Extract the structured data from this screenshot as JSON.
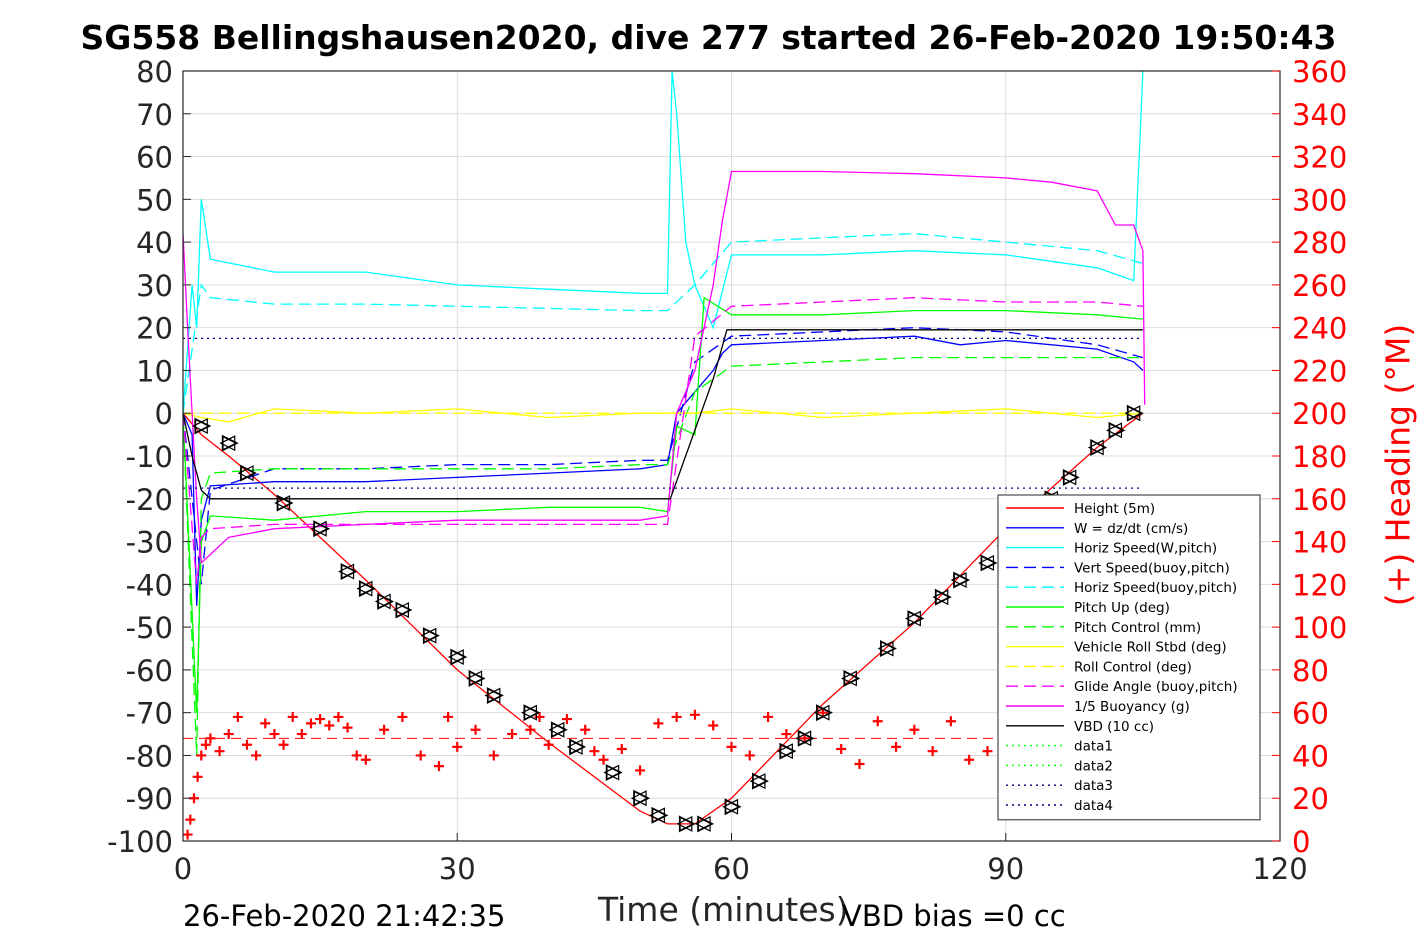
{
  "title": "SG558 Bellingshausen2020, dive 277 started 26-Feb-2020 19:50:43",
  "footer": {
    "date": "26-Feb-2020 21:42:35",
    "vbd_bias": "VBD bias =0 cc"
  },
  "colors": {
    "height": "#ff0000",
    "w": "#0000ff",
    "horiz": "#00ffff",
    "pitch": "#00ff00",
    "roll": "#ffff00",
    "glide": "#ff00ff",
    "vbd": "#000000",
    "grid": "#dcdcdc"
  },
  "chart_data": {
    "type": "line",
    "xlabel": "Time (minutes)",
    "ylabel": "",
    "y2label": "(+) Heading (°M)",
    "xlim": [
      0,
      120
    ],
    "ylim": [
      -100,
      80
    ],
    "y2lim": [
      0,
      360
    ],
    "xticks": [
      0,
      30,
      60,
      90,
      120
    ],
    "yticks": [
      80,
      70,
      60,
      50,
      40,
      30,
      20,
      10,
      0,
      -10,
      -20,
      -30,
      -40,
      -50,
      -60,
      -70,
      -80,
      -90,
      -100
    ],
    "y2ticks": [
      360,
      340,
      320,
      300,
      280,
      260,
      240,
      220,
      200,
      180,
      160,
      140,
      120,
      100,
      80,
      60,
      40,
      20,
      0
    ],
    "grid": true,
    "legend_position": "bottom-right",
    "series": [
      {
        "name": "Height (5m)",
        "color": "#ff0000",
        "style": "solid",
        "x": [
          0,
          2,
          5,
          10,
          20,
          30,
          40,
          50,
          53,
          56,
          60,
          70,
          80,
          90,
          100,
          105
        ],
        "y": [
          0,
          -5,
          -10,
          -19,
          -39,
          -60,
          -77,
          -93,
          -96,
          -96,
          -90,
          -68,
          -49,
          -27,
          -8,
          0
        ]
      },
      {
        "name": "W = dz/dt (cm/s)",
        "color": "#0000ff",
        "style": "solid",
        "x": [
          0,
          1,
          1.5,
          2,
          3,
          10,
          20,
          30,
          40,
          50,
          53,
          54,
          56,
          58,
          59,
          60,
          70,
          80,
          85,
          90,
          100,
          104,
          105
        ],
        "y": [
          0,
          -5,
          -45,
          -25,
          -17,
          -16,
          -16,
          -15,
          -14,
          -13,
          -12,
          0,
          5,
          10,
          14,
          16,
          17,
          18,
          16,
          17,
          15,
          12,
          10
        ]
      },
      {
        "name": "Horiz Speed(W,pitch)",
        "color": "#00ffff",
        "style": "solid",
        "x": [
          0,
          1,
          1.5,
          2,
          3,
          10,
          20,
          30,
          40,
          50,
          53,
          53.5,
          54,
          55,
          56,
          58,
          60,
          70,
          80,
          90,
          100,
          104,
          105
        ],
        "y": [
          0,
          30,
          20,
          50,
          36,
          33,
          33,
          30,
          29,
          28,
          28,
          80,
          70,
          40,
          30,
          20,
          37,
          37,
          38,
          37,
          34,
          31,
          80
        ]
      },
      {
        "name": "Vert Speed(buoy,pitch)",
        "color": "#0000ff",
        "style": "dash",
        "x": [
          0,
          2,
          3,
          10,
          20,
          30,
          40,
          50,
          53,
          56,
          60,
          70,
          80,
          90,
          100,
          105
        ],
        "y": [
          0,
          -40,
          -18,
          -13,
          -13,
          -12,
          -12,
          -11,
          -11,
          12,
          18,
          19,
          20,
          19,
          16,
          13
        ]
      },
      {
        "name": "Horiz Speed(buoy,pitch)",
        "color": "#00ffff",
        "style": "dash",
        "x": [
          0,
          2,
          3,
          10,
          20,
          30,
          40,
          50,
          53,
          56,
          60,
          70,
          80,
          90,
          100,
          105
        ],
        "y": [
          0,
          30,
          27,
          25.5,
          25.5,
          25,
          24.5,
          24,
          24,
          30,
          40,
          41,
          42,
          40,
          38,
          35
        ]
      },
      {
        "name": "Pitch Up (deg)",
        "color": "#00ff00",
        "style": "solid",
        "x": [
          0,
          1.5,
          2,
          3,
          10,
          20,
          30,
          40,
          50,
          53,
          54,
          56,
          57,
          60,
          70,
          80,
          90,
          100,
          105
        ],
        "y": [
          0,
          -70,
          -30,
          -24,
          -25,
          -23,
          -23,
          -22,
          -22,
          -23,
          -3,
          -5,
          27,
          23,
          23,
          24,
          24,
          23,
          22
        ]
      },
      {
        "name": "Pitch Control (mm)",
        "color": "#00ff00",
        "style": "dash",
        "x": [
          0,
          1.5,
          2,
          3,
          10,
          20,
          30,
          40,
          50,
          53,
          56,
          60,
          70,
          80,
          90,
          100,
          105
        ],
        "y": [
          0,
          -80,
          -20,
          -14,
          -13,
          -13,
          -13,
          -13,
          -12,
          -12,
          5,
          11,
          12,
          13,
          13,
          13,
          13
        ]
      },
      {
        "name": "Vehicle Roll Stbd (deg)",
        "color": "#ffff00",
        "style": "solid",
        "x": [
          0,
          2,
          5,
          10,
          20,
          30,
          40,
          50,
          53,
          56,
          60,
          70,
          80,
          90,
          100,
          105
        ],
        "y": [
          0,
          -1,
          -2,
          1,
          0,
          1,
          -1,
          0,
          0,
          0,
          1,
          -1,
          0,
          1,
          -1,
          0
        ]
      },
      {
        "name": "Roll Control (deg)",
        "color": "#ffff00",
        "style": "dash",
        "x": [
          0,
          2,
          5,
          10,
          20,
          30,
          40,
          50,
          53,
          56,
          60,
          70,
          80,
          90,
          100,
          105
        ],
        "y": [
          0,
          0,
          0,
          0,
          0,
          0,
          0,
          0,
          0,
          0,
          0,
          0,
          0,
          0,
          0,
          0
        ]
      },
      {
        "name": "Glide Angle (buoy,pitch)",
        "color": "#ff00ff",
        "style": "dash",
        "x": [
          0,
          1.5,
          2,
          3,
          10,
          20,
          30,
          40,
          50,
          53,
          56,
          60,
          70,
          80,
          90,
          100,
          105
        ],
        "y": [
          0,
          -40,
          -29,
          -27,
          -26,
          -26,
          -26,
          -26,
          -26,
          -26,
          18,
          25,
          26,
          27,
          26,
          26,
          25
        ]
      },
      {
        "name": "1/5 Buoyancy (g)",
        "color": "#ff00ff",
        "style": "solid",
        "x": [
          0,
          0.5,
          1,
          1.5,
          2,
          3,
          5,
          10,
          20,
          30,
          40,
          50,
          53,
          54,
          56,
          58,
          59,
          60,
          70,
          80,
          90,
          95,
          100,
          101,
          102,
          104,
          105,
          105.2
        ],
        "y": [
          42,
          20,
          0,
          -20,
          -35,
          -33,
          -29,
          -27,
          -26,
          -25,
          -25,
          -25,
          -24,
          0,
          10,
          30,
          45,
          56.5,
          56.5,
          56,
          55,
          54,
          52,
          48,
          44,
          44,
          38,
          2
        ]
      },
      {
        "name": "VBD (10 cc)",
        "color": "#000000",
        "style": "solid",
        "x": [
          0,
          1,
          2,
          3,
          53,
          53.3,
          58,
          59.5,
          105
        ],
        "y": [
          0,
          -10,
          -18,
          -20,
          -20,
          -20,
          8,
          19.5,
          19.5
        ]
      },
      {
        "name": "data1",
        "color": "#00ff00",
        "style": "dot",
        "x": [],
        "y": []
      },
      {
        "name": "data2",
        "color": "#00ff00",
        "style": "dot",
        "x": [],
        "y": []
      },
      {
        "name": "data3",
        "color": "#000080",
        "style": "dot",
        "x": [
          0,
          105
        ],
        "y": [
          17.5,
          17.5
        ]
      },
      {
        "name": "data4",
        "color": "#000080",
        "style": "dot",
        "x": [
          0,
          105
        ],
        "y": [
          -17.5,
          -17.5
        ]
      }
    ],
    "heading": {
      "axis": "right",
      "color": "#ff0000",
      "marker": "+",
      "x": [
        0.5,
        0.8,
        1.2,
        1.6,
        2,
        2.5,
        3,
        4,
        5,
        6,
        7,
        8,
        9,
        10,
        11,
        12,
        13,
        14,
        15,
        16,
        17,
        18,
        19,
        20,
        22,
        24,
        26,
        28,
        29,
        30,
        32,
        34,
        36,
        38,
        39,
        40,
        42,
        44,
        45,
        46,
        48,
        50,
        52,
        54,
        56,
        58,
        60,
        62,
        64,
        66,
        68,
        70,
        72,
        74,
        76,
        78,
        80,
        82,
        84,
        86,
        88,
        90
      ],
      "y": [
        3,
        10,
        20,
        30,
        40,
        45,
        48,
        42,
        50,
        58,
        45,
        40,
        55,
        50,
        45,
        58,
        50,
        55,
        57,
        54,
        58,
        53,
        40,
        38,
        52,
        58,
        40,
        35,
        58,
        44,
        52,
        40,
        50,
        52,
        58,
        45,
        57,
        52,
        42,
        38,
        43,
        33,
        55,
        58,
        59,
        54,
        44,
        40,
        58,
        50,
        48,
        60,
        43,
        36,
        56,
        44,
        52,
        42,
        56,
        38,
        42,
        38
      ]
    },
    "markers": {
      "name": "dive triangles",
      "x": [
        2,
        5,
        7,
        11,
        15,
        18,
        20,
        22,
        24,
        27,
        30,
        32,
        34,
        38,
        41,
        43,
        47,
        50,
        52,
        55,
        57,
        60,
        63,
        66,
        68,
        70,
        73,
        77,
        80,
        83,
        85,
        88,
        90,
        92,
        95,
        97,
        100,
        102,
        104
      ],
      "y": [
        -3,
        -7,
        -14,
        -21,
        -27,
        -37,
        -41,
        -44,
        -46,
        -52,
        -57,
        -62,
        -66,
        -70,
        -74,
        -78,
        -84,
        -90,
        -94,
        -96,
        -96,
        -92,
        -86,
        -79,
        -76,
        -70,
        -62,
        -55,
        -48,
        -43,
        -39,
        -35,
        -31,
        -27,
        -20,
        -15,
        -8,
        -4,
        0
      ]
    },
    "ref_line": {
      "name": "heading reference",
      "color": "#ff0000",
      "style": "dash",
      "x": [
        0,
        105
      ],
      "y": [
        -76,
        -76
      ]
    }
  }
}
